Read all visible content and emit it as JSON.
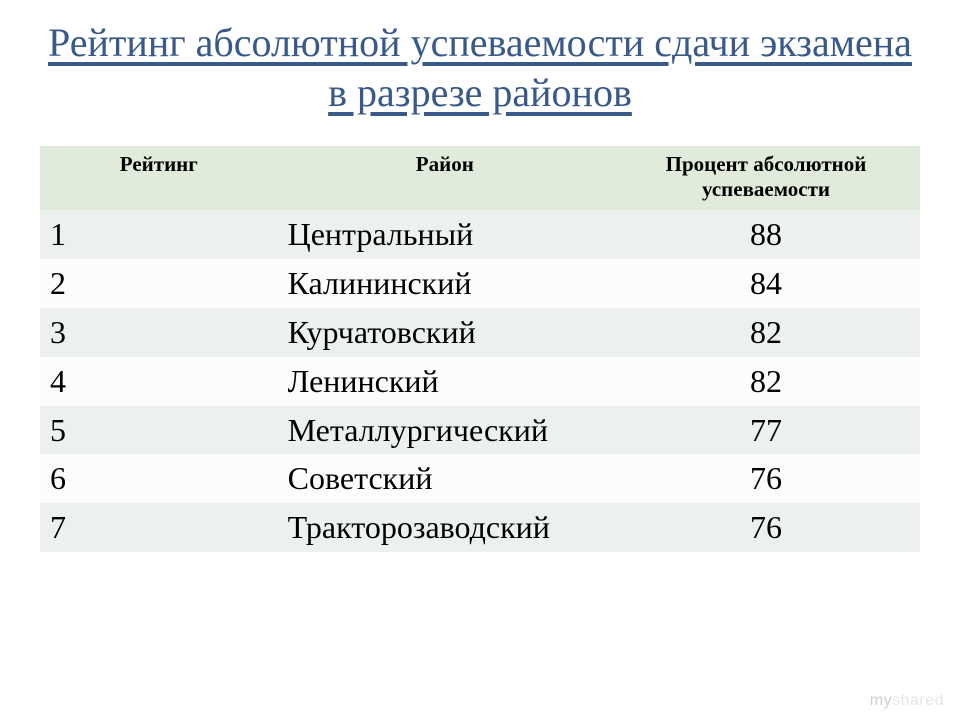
{
  "title": "Рейтинг абсолютной успеваемости сдачи экзамена в разрезе районов",
  "table": {
    "type": "table",
    "columns": [
      {
        "label": "Рейтинг",
        "width_pct": 27,
        "align": "left"
      },
      {
        "label": "Район",
        "width_pct": 38,
        "align": "left"
      },
      {
        "label": "Процент абсолютной успеваемости",
        "width_pct": 35,
        "align": "center"
      }
    ],
    "header_bg": "#e1ebdb",
    "row_bg_even": "#ecf1ee",
    "row_bg_odd": "#fbfcfb",
    "header_fontsize_pt": 16,
    "cell_fontsize_pt": 24,
    "text_color": "#000000",
    "rows": [
      {
        "rank": "1",
        "district": "Центральный",
        "pct": "88"
      },
      {
        "rank": "2",
        "district": "Калининский",
        "pct": "84"
      },
      {
        "rank": "3",
        "district": "Курчатовский",
        "pct": "82"
      },
      {
        "rank": "4",
        "district": "Ленинский",
        "pct": "82"
      },
      {
        "rank": "5",
        "district": "Металлургический",
        "pct": "77"
      },
      {
        "rank": "6",
        "district": "Советский",
        "pct": "76"
      },
      {
        "rank": "7",
        "district": "Тракторозаводский",
        "pct": "76"
      }
    ]
  },
  "title_style": {
    "color": "#385989",
    "fontsize_pt": 30,
    "underline": true
  },
  "background_color": "#ffffff",
  "watermark": {
    "part1": "my",
    "part2": "shared"
  }
}
